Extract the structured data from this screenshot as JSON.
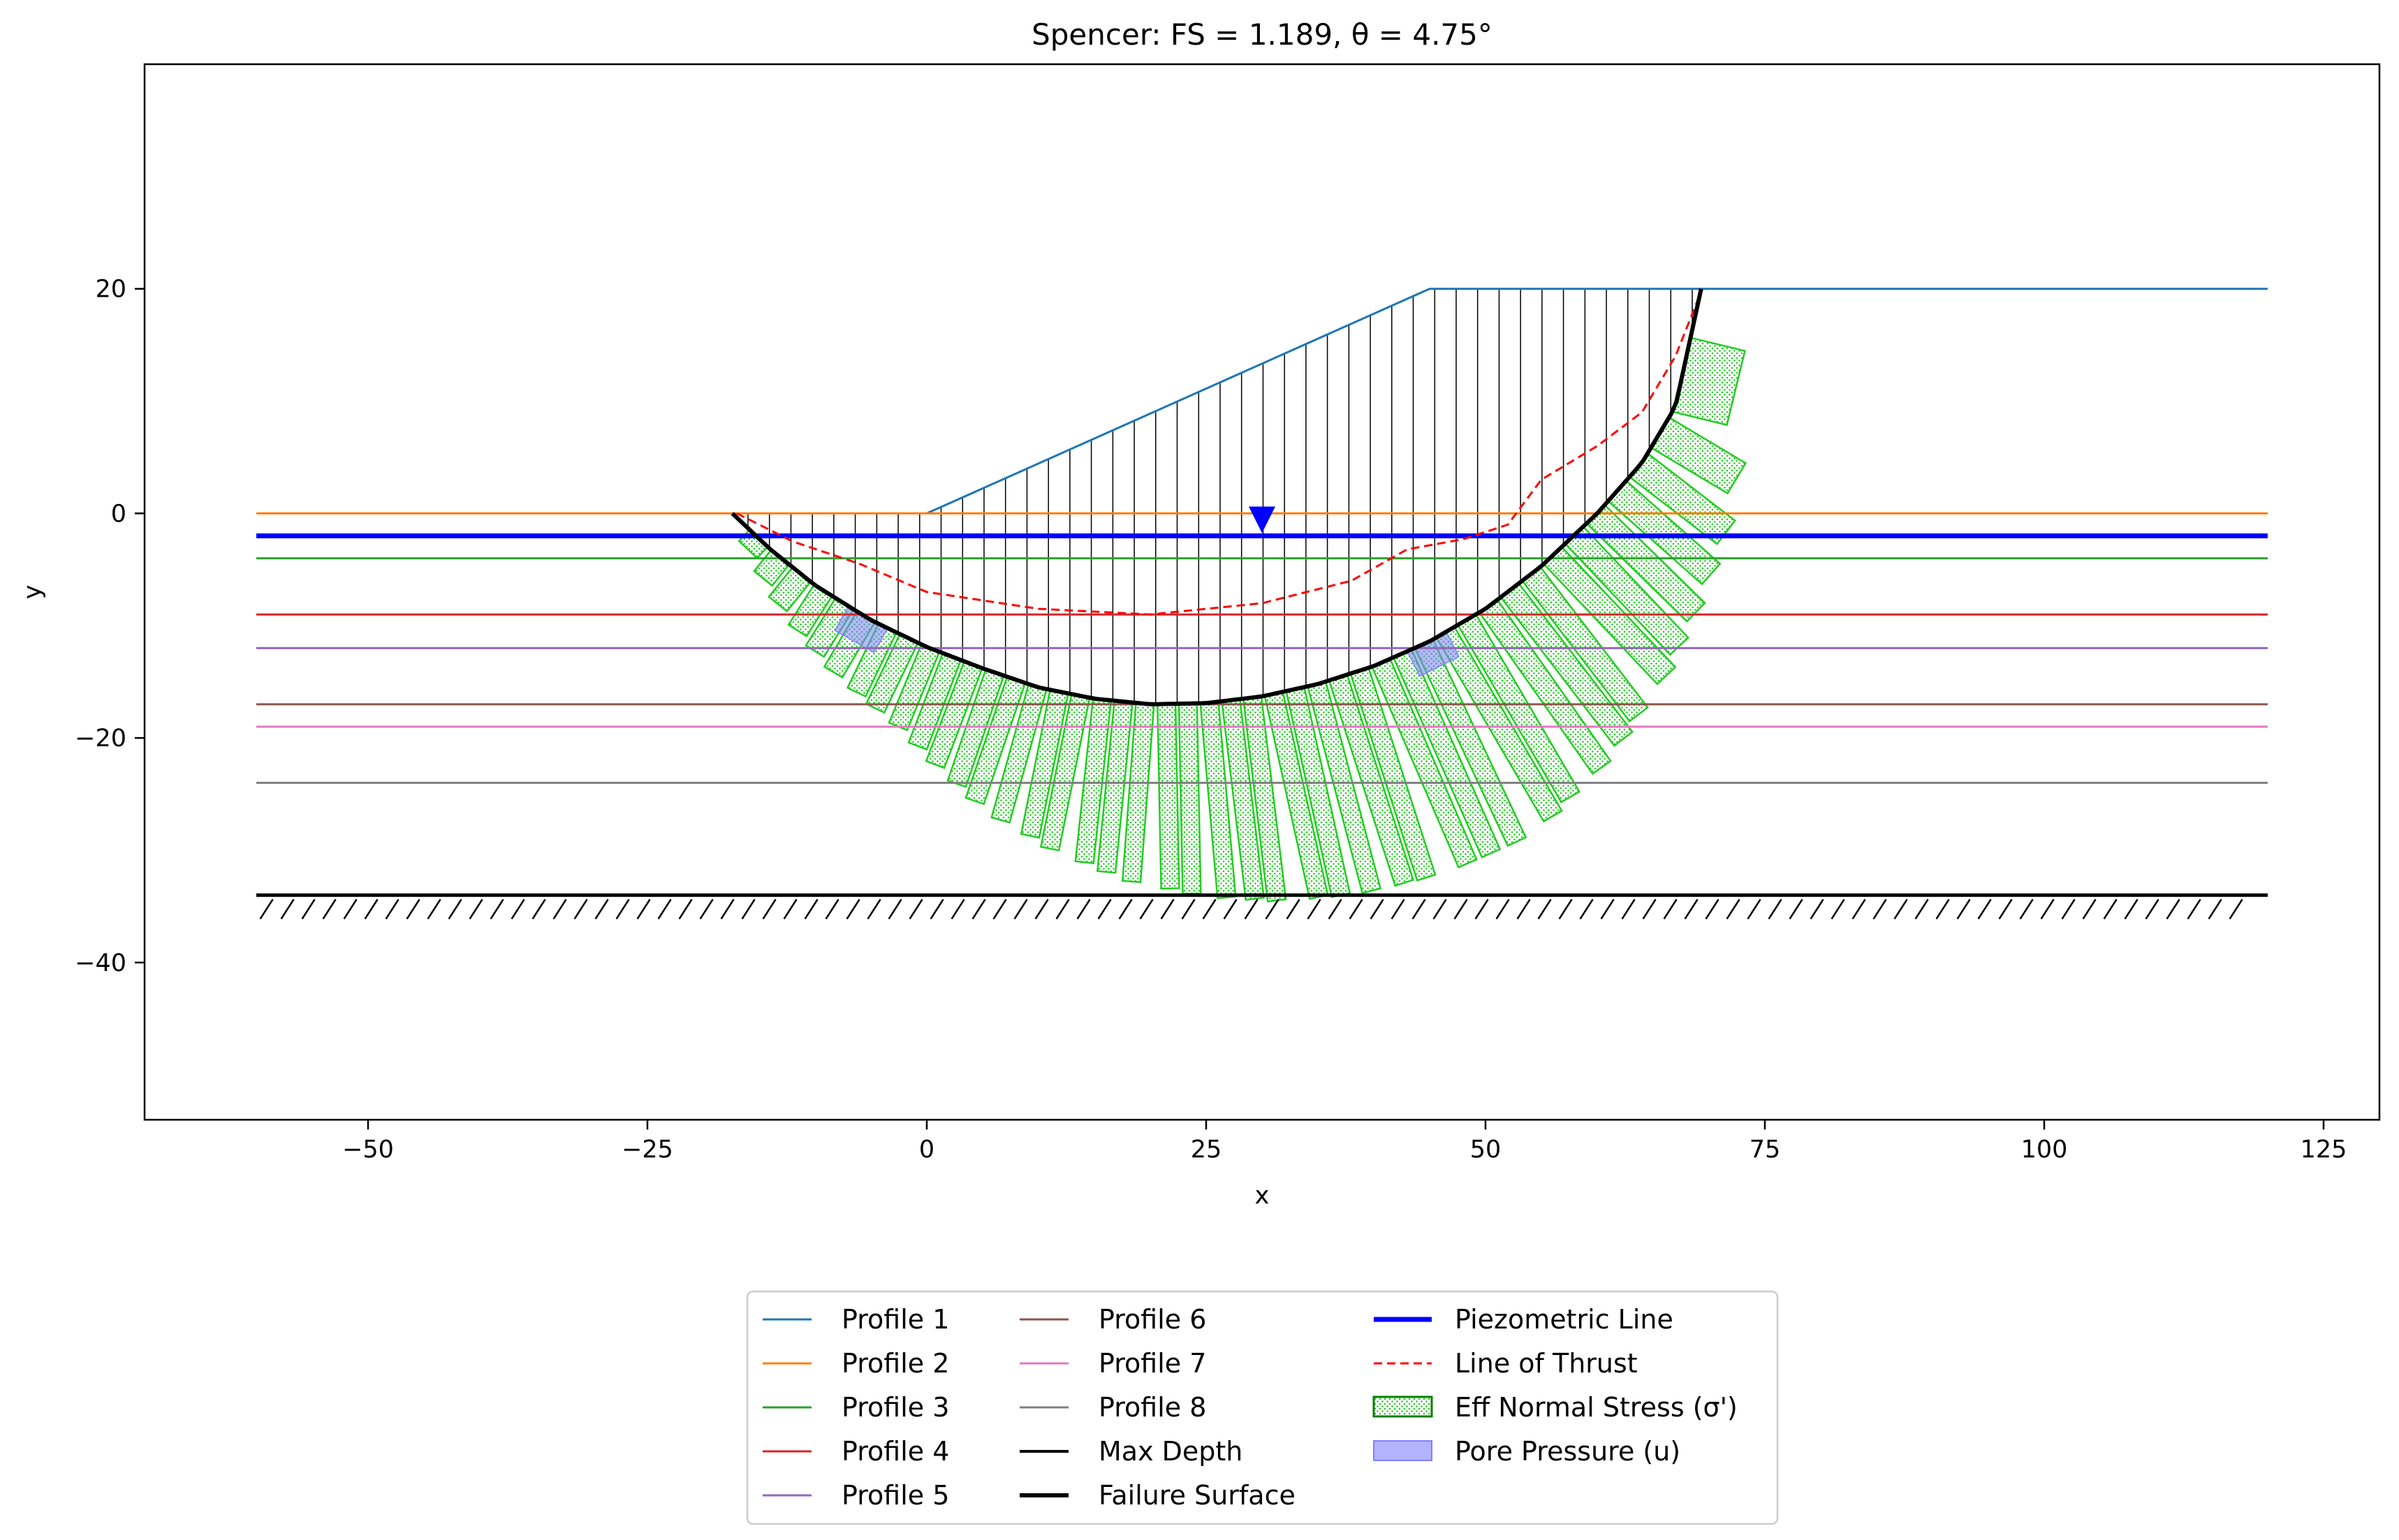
{
  "chart_data": {
    "type": "line",
    "title": "Spencer: FS = 1.189, θ = 4.75°",
    "xlabel": "x",
    "ylabel": "y",
    "xlim": [
      -70,
      130
    ],
    "ylim": [
      -54,
      40
    ],
    "xticks": [
      -50,
      -25,
      0,
      25,
      50,
      75,
      100,
      125
    ],
    "yticks": [
      20,
      0,
      -20,
      -40
    ],
    "grid": false,
    "legend_position": "bottom-center",
    "colors": {
      "profile_1": "#1f77b4",
      "profile_2": "#ff7f0e",
      "profile_3": "#2ca02c",
      "profile_4": "#d62728",
      "profile_5": "#9467bd",
      "profile_6": "#8c564b",
      "profile_7": "#e377c2",
      "profile_8": "#7f7f7f",
      "piezometric": "#0000ff",
      "thrust": "#ff0000",
      "stress_edge": "#22cc22",
      "pore": "#8080ff"
    },
    "profiles": [
      {
        "name": "Profile 1",
        "points": [
          [
            0,
            0
          ],
          [
            45,
            20
          ],
          [
            120,
            20
          ]
        ]
      },
      {
        "name": "Profile 2",
        "points": [
          [
            -60,
            0
          ],
          [
            120,
            0
          ]
        ]
      },
      {
        "name": "Profile 3",
        "points": [
          [
            -60,
            -4
          ],
          [
            120,
            -4
          ]
        ]
      },
      {
        "name": "Profile 4",
        "points": [
          [
            -60,
            -9
          ],
          [
            120,
            -9
          ]
        ]
      },
      {
        "name": "Profile 5",
        "points": [
          [
            -60,
            -12
          ],
          [
            120,
            -12
          ]
        ]
      },
      {
        "name": "Profile 6",
        "points": [
          [
            -60,
            -17
          ],
          [
            120,
            -17
          ]
        ]
      },
      {
        "name": "Profile 7",
        "points": [
          [
            -60,
            -19
          ],
          [
            120,
            -19
          ]
        ]
      },
      {
        "name": "Profile 8",
        "points": [
          [
            -60,
            -24
          ],
          [
            120,
            -24
          ]
        ]
      }
    ],
    "max_depth": {
      "name": "Max Depth",
      "y": -34,
      "x": [
        -60,
        120
      ]
    },
    "piezometric_line": {
      "name": "Piezometric Line",
      "y": -2,
      "x": [
        -60,
        120
      ],
      "marker_x": 30
    },
    "failure_surface": {
      "name": "Failure Surface",
      "points": [
        [
          -17.4,
          0
        ],
        [
          -14,
          -3.2
        ],
        [
          -10,
          -6.4
        ],
        [
          -5,
          -9.5
        ],
        [
          0,
          -11.9
        ],
        [
          5,
          -13.8
        ],
        [
          10,
          -15.5
        ],
        [
          15,
          -16.5
        ],
        [
          20,
          -17
        ],
        [
          25,
          -16.9
        ],
        [
          30,
          -16.3
        ],
        [
          35,
          -15.2
        ],
        [
          40,
          -13.6
        ],
        [
          45,
          -11.4
        ],
        [
          50,
          -8.5
        ],
        [
          55,
          -4.7
        ],
        [
          60,
          0
        ],
        [
          64,
          4.5
        ],
        [
          67,
          9.5
        ],
        [
          69.3,
          20
        ]
      ]
    },
    "line_of_thrust": {
      "name": "Line of Thrust",
      "points": [
        [
          -17,
          0
        ],
        [
          -12,
          -2.5
        ],
        [
          -6,
          -4.5
        ],
        [
          0,
          -7
        ],
        [
          10,
          -8.5
        ],
        [
          20,
          -9
        ],
        [
          30,
          -8
        ],
        [
          38,
          -6
        ],
        [
          43,
          -3.2
        ],
        [
          48,
          -2.3
        ],
        [
          52,
          -1
        ],
        [
          55,
          3
        ],
        [
          60,
          6
        ],
        [
          64,
          9
        ],
        [
          67,
          14
        ],
        [
          69,
          19
        ]
      ]
    },
    "eff_normal_stress_label": "Eff Normal Stress (σ')",
    "pore_pressure_label": "Pore Pressure (u)",
    "pore_pressure_zones": [
      [
        -7,
        -3.5
      ],
      [
        43,
        46.5
      ]
    ],
    "slices": {
      "count": 44,
      "x_start": -16,
      "x_end": 68.5
    }
  }
}
